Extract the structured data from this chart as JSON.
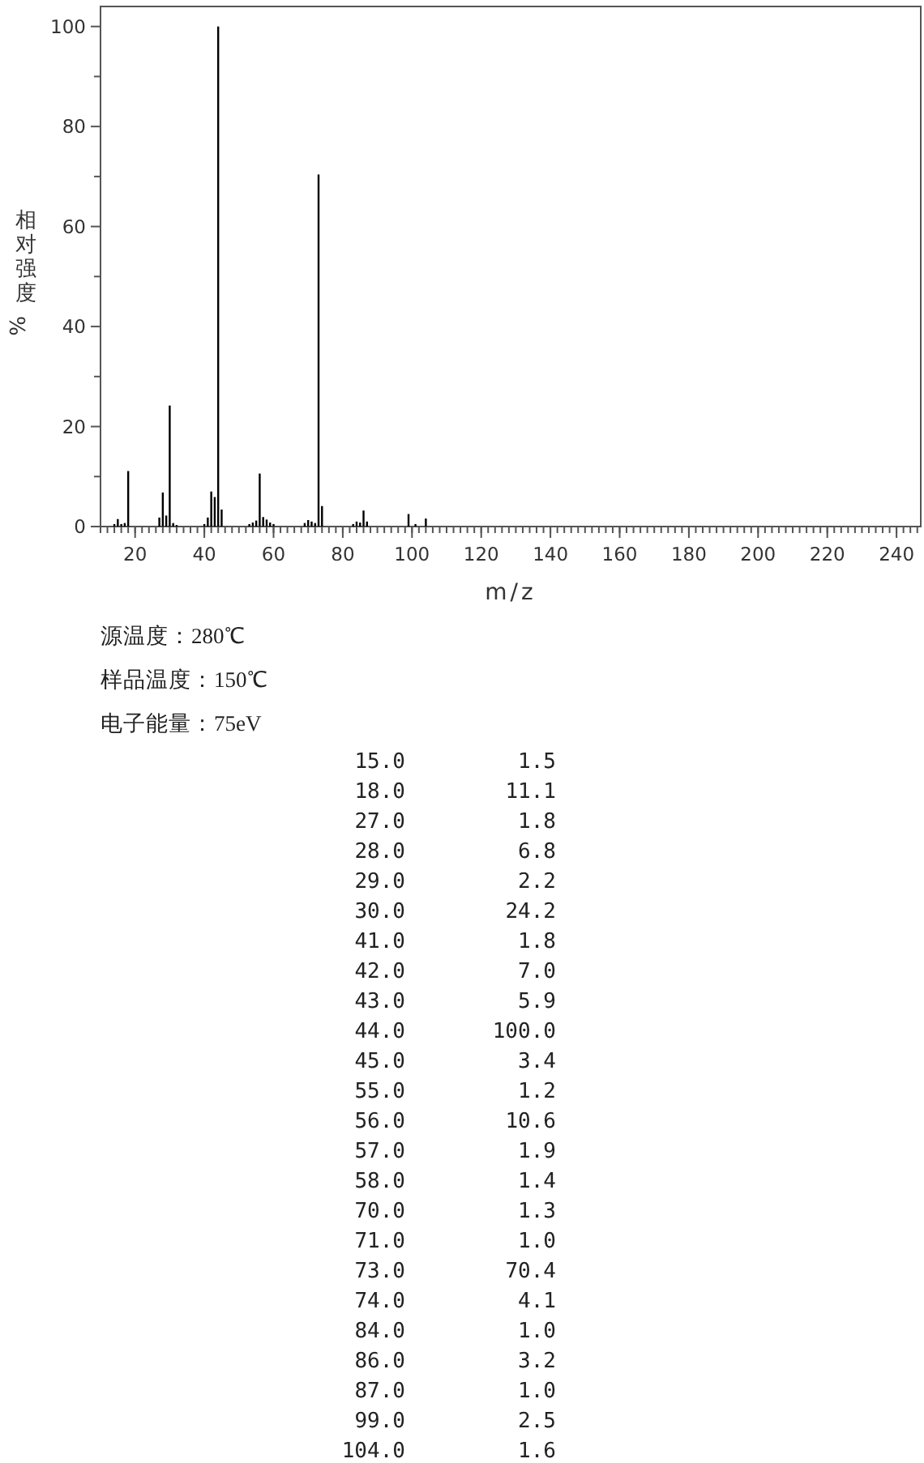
{
  "chart_data": [
    {
      "type": "bar",
      "xlabel": "m/z",
      "ylabel": "相对强度%",
      "x": [
        14,
        15,
        16,
        17,
        18,
        27,
        28,
        29,
        30,
        31,
        32,
        40,
        41,
        42,
        43,
        44,
        45,
        53,
        54,
        55,
        56,
        57,
        58,
        59,
        60,
        69,
        70,
        71,
        72,
        73,
        74,
        83,
        84,
        85,
        86,
        87,
        99,
        101,
        104
      ],
      "values": [
        0.5,
        1.5,
        0.5,
        0.7,
        11.1,
        1.8,
        6.8,
        2.2,
        24.2,
        0.7,
        0.3,
        0.5,
        1.8,
        7.0,
        5.9,
        100.0,
        3.4,
        0.5,
        0.8,
        1.2,
        10.6,
        1.9,
        1.4,
        0.8,
        0.5,
        0.7,
        1.3,
        1.0,
        0.7,
        70.4,
        4.1,
        0.5,
        1.0,
        0.8,
        3.2,
        1.0,
        2.5,
        0.5,
        1.6
      ],
      "color": "#000000",
      "xlim": [
        10,
        247
      ],
      "ylim": [
        0,
        104
      ],
      "xticks": [
        20,
        40,
        60,
        80,
        100,
        120,
        140,
        160,
        180,
        200,
        220,
        240
      ],
      "yticks": [
        0,
        20,
        40,
        60,
        80,
        100
      ],
      "annotations": [
        "源温度：280℃",
        "样品温度：150℃",
        "电子能量：75eV"
      ]
    },
    {
      "type": "other",
      "value_labels": [
        "1.5",
        "11.1",
        "1.8",
        "6.8",
        "2.2",
        "24.2",
        "1.8",
        "7.0",
        "5.9",
        "100.0",
        "3.4",
        "1.2",
        "10.6",
        "1.9",
        "1.4",
        "1.3",
        "1.0",
        "70.4",
        "4.1",
        "1.0",
        "3.2",
        "1.0",
        "2.5",
        "1.6"
      ],
      "categories": [
        "15.0",
        "18.0",
        "27.0",
        "28.0",
        "29.0",
        "30.0",
        "41.0",
        "42.0",
        "43.0",
        "44.0",
        "45.0",
        "55.0",
        "56.0",
        "57.0",
        "58.0",
        "70.0",
        "71.0",
        "73.0",
        "74.0",
        "84.0",
        "86.0",
        "87.0",
        "99.0",
        "104.0"
      ],
      "values": [
        1.5,
        11.1,
        1.8,
        6.8,
        2.2,
        24.2,
        1.8,
        7.0,
        5.9,
        100.0,
        3.4,
        1.2,
        10.6,
        1.9,
        1.4,
        1.3,
        1.0,
        70.4,
        4.1,
        1.0,
        3.2,
        1.0,
        2.5,
        1.6
      ]
    }
  ]
}
